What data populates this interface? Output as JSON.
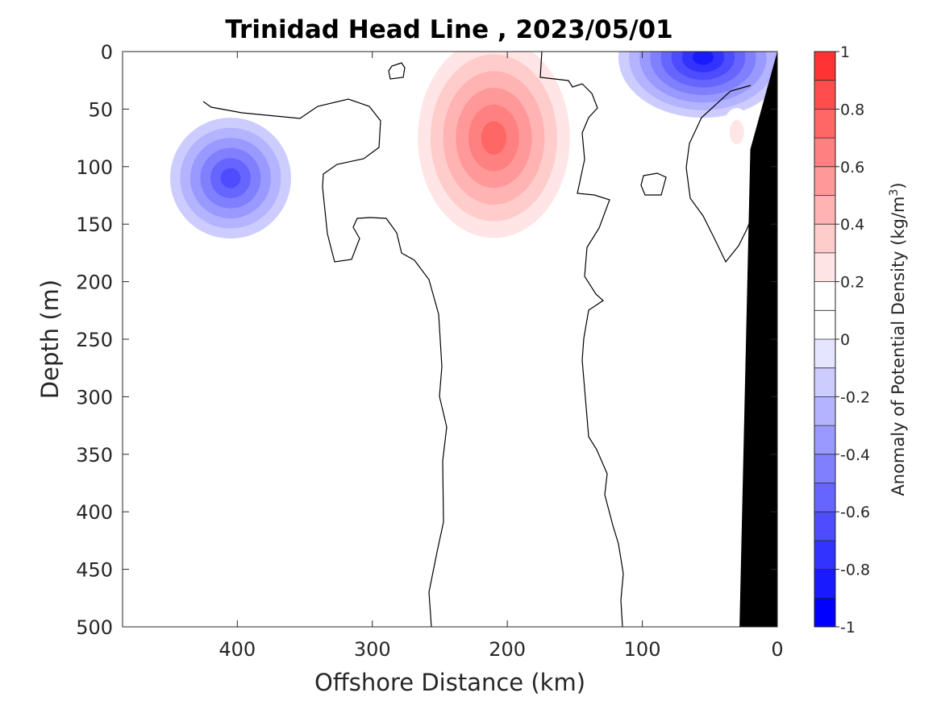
{
  "chart_data": {
    "type": "contour",
    "title": "Trinidad Head Line , 2023/05/01",
    "xlabel": "Offshore Distance (km)",
    "ylabel": "Depth (m)",
    "xlim": [
      485,
      0
    ],
    "ylim": [
      0,
      500
    ],
    "x_reversed": true,
    "y_reversed": true,
    "xticks": [
      400,
      300,
      200,
      100,
      0
    ],
    "yticks": [
      0,
      50,
      100,
      150,
      200,
      250,
      300,
      350,
      400,
      450,
      500
    ],
    "colorbar": {
      "label": "Anomaly of Potential Density (kg/m",
      "label_superscript": "3",
      "label_close": ")",
      "range": [
        -1,
        1
      ],
      "ticks": [
        1,
        0.8,
        0.6,
        0.4,
        0.2,
        0,
        -0.2,
        -0.4,
        -0.6,
        -0.8,
        -1
      ],
      "levels": [
        -1,
        -0.9,
        -0.8,
        -0.7,
        -0.6,
        -0.5,
        -0.4,
        -0.3,
        -0.2,
        -0.1,
        0,
        0.1,
        0.2,
        0.3,
        0.4,
        0.5,
        0.6,
        0.7,
        0.8,
        0.9,
        1
      ],
      "colors": [
        "#0000ff",
        "#1a1aff",
        "#3333ff",
        "#4d4dff",
        "#6666ff",
        "#8080ff",
        "#9999ff",
        "#b3b3ff",
        "#ccccff",
        "#e5e5ff",
        "#ffffff",
        "#ffffff",
        "#ffe5e5",
        "#ffcccc",
        "#ffb3b3",
        "#ff9999",
        "#ff8080",
        "#ff6666",
        "#ff4d4d",
        "#ff3333",
        "#ff0000"
      ]
    },
    "features": [
      {
        "type": "positive_anomaly",
        "center_km": 210,
        "center_depth_m": 75,
        "max_value": 0.7
      },
      {
        "type": "negative_anomaly",
        "center_km": 405,
        "center_depth_m": 110,
        "min_value": -0.6
      },
      {
        "type": "negative_anomaly",
        "center_km": 55,
        "center_depth_m": 5,
        "min_value": -0.8
      },
      {
        "type": "positive_anomaly",
        "center_km": 30,
        "center_depth_m": 70,
        "max_value": 0.2
      }
    ],
    "bathymetry": [
      [
        0,
        0
      ],
      [
        20,
        85
      ],
      [
        28,
        500
      ]
    ],
    "bathymetry_color": "#000000"
  }
}
